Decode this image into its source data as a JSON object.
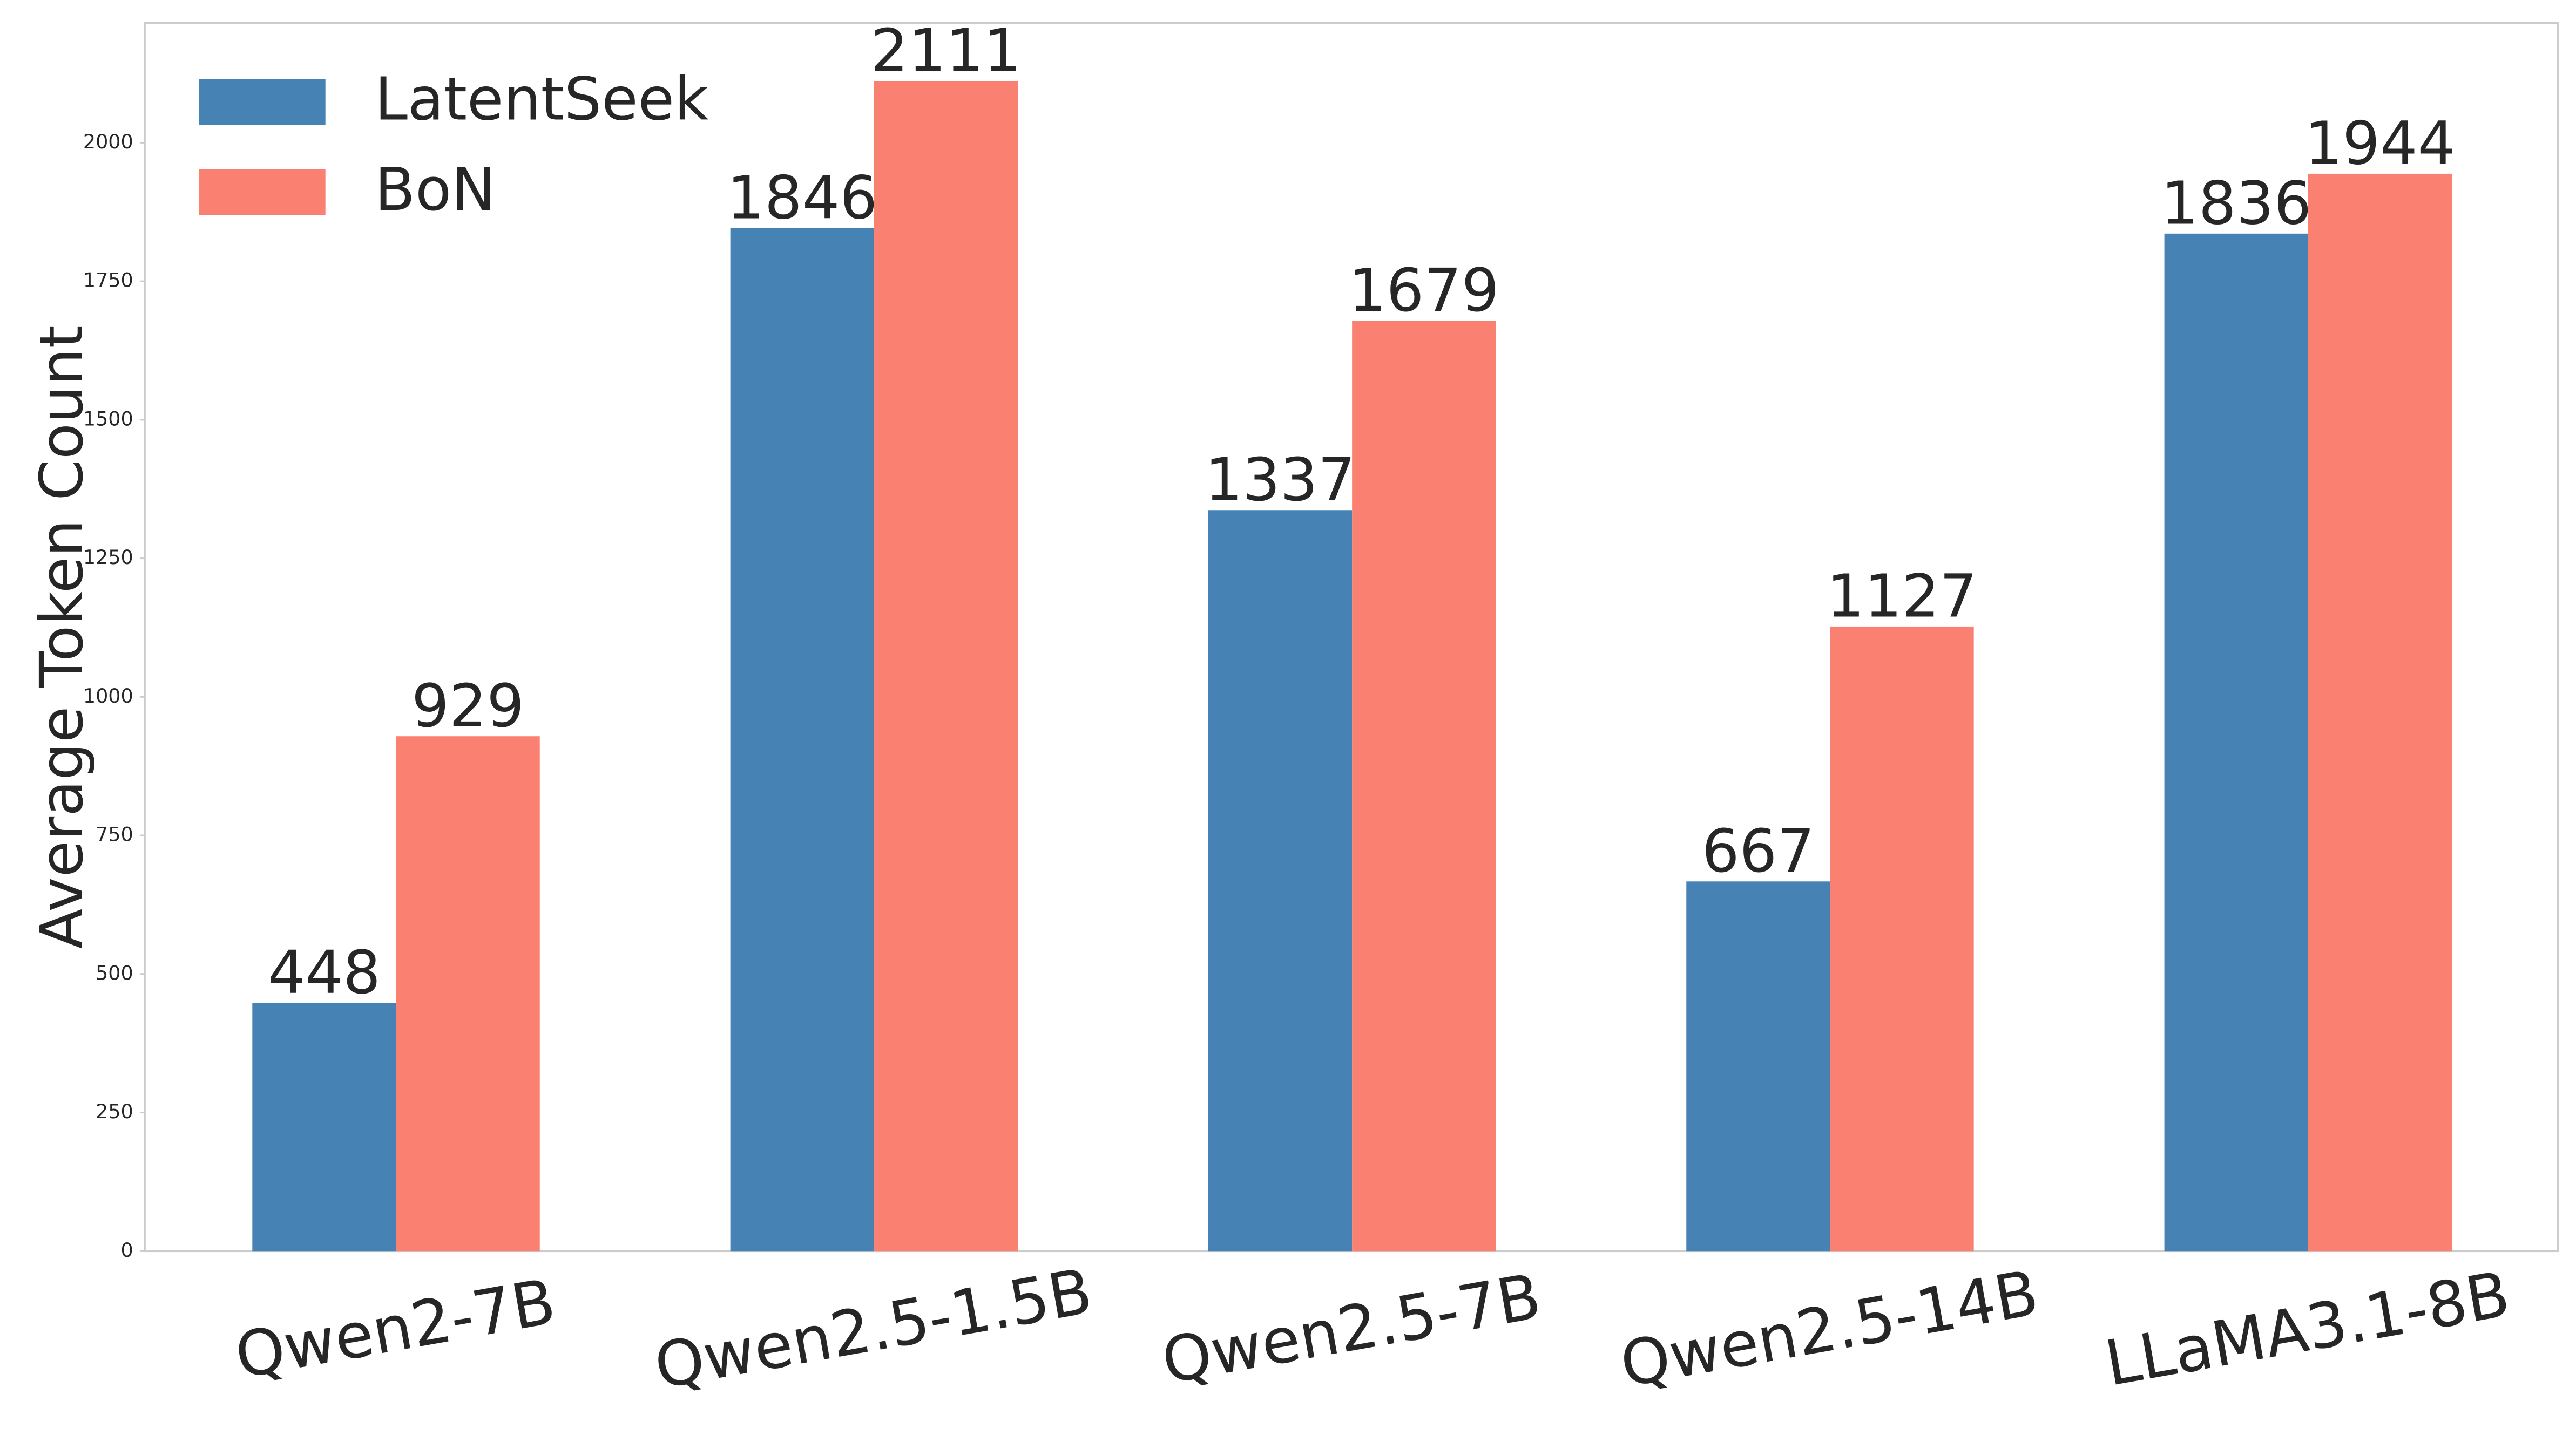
{
  "chart_data": {
    "type": "bar",
    "y_label": "Average Token Count",
    "categories": [
      "Qwen2-7B",
      "Qwen2.5-1.5B",
      "Qwen2.5-7B",
      "Qwen2.5-14B",
      "LLaMA3.1-8B"
    ],
    "series": [
      {
        "name": "LatentSeek",
        "color": "#4682b4",
        "values": [
          448,
          1846,
          1337,
          667,
          1836
        ]
      },
      {
        "name": "BoN",
        "color": "#fa8072",
        "values": [
          929,
          2111,
          1679,
          1127,
          1944
        ]
      }
    ],
    "ylim": [
      0,
      2216
    ],
    "yticks": [
      0,
      250,
      500,
      750,
      1000,
      1250,
      1500,
      1750,
      2000
    ],
    "legend": "upper left"
  }
}
